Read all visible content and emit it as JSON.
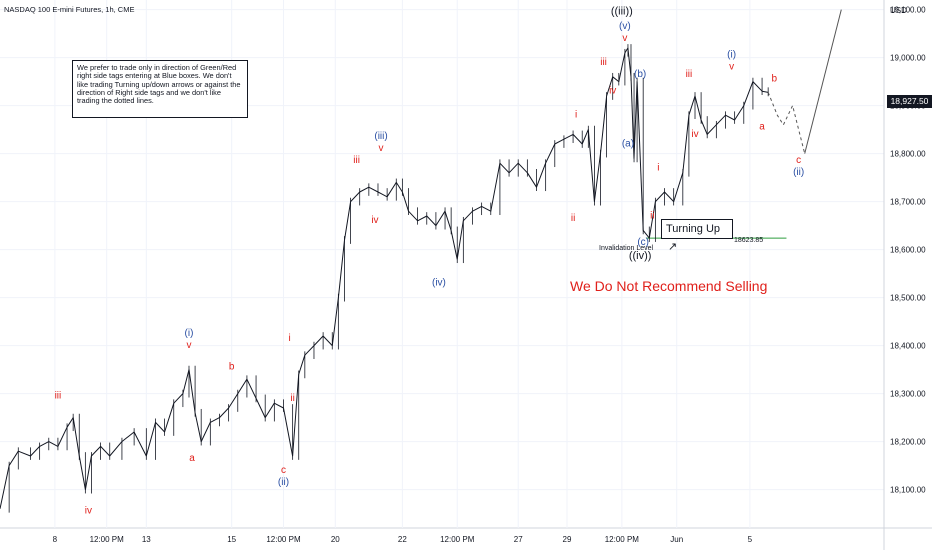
{
  "header": {
    "title": "NASDAQ 100 E-mini Futures, 1h, CME"
  },
  "currency": "USD",
  "last_price": "18,927.50",
  "note_text": "We prefer to trade only in direction of Green/Red right side tags entering at Blue boxes. We don't like trading Turning up/down arrows or against the direction of Right side tags and we don't like trading the dotted lines.",
  "turning_label": "Turning Up",
  "warning": "We Do Not Recommend Selling",
  "invalidation": {
    "label": "Invalidation Level",
    "value": "18623.85",
    "line_color": "#2e9e3f"
  },
  "colors": {
    "red": "#e0201b",
    "blue": "#2a4fa3",
    "dark": "#131722",
    "grid": "#f0f3fa"
  },
  "chart_data": {
    "type": "line",
    "title": "NASDAQ 100 E-mini Futures, 1h, CME",
    "ylim": [
      18020,
      19120
    ],
    "y_ticks": [
      "18,100.00",
      "18,200.00",
      "18,300.00",
      "18,400.00",
      "18,500.00",
      "18,600.00",
      "18,700.00",
      "18,800.00",
      "18,900.00",
      "19,000.00",
      "19,100.00"
    ],
    "y_tick_values": [
      18100,
      18200,
      18300,
      18400,
      18500,
      18600,
      18700,
      18800,
      18900,
      19000,
      19100
    ],
    "x_labels": [
      "8",
      "12:00 PM",
      "13",
      "15",
      "12:00 PM",
      "20",
      "22",
      "12:00 PM",
      "27",
      "29",
      "12:00 PM",
      "Jun",
      "5"
    ],
    "series": [
      {
        "points": [
          [
            0,
            18060
          ],
          [
            3,
            18150
          ],
          [
            6,
            18180
          ],
          [
            10,
            18170
          ],
          [
            13,
            18190
          ],
          [
            16,
            18200
          ],
          [
            19,
            18190
          ],
          [
            22,
            18230
          ],
          [
            24,
            18250
          ],
          [
            26,
            18170
          ],
          [
            28,
            18100
          ],
          [
            30,
            18170
          ],
          [
            33,
            18190
          ],
          [
            36,
            18170
          ],
          [
            40,
            18200
          ],
          [
            44,
            18220
          ],
          [
            48,
            18170
          ],
          [
            51,
            18240
          ],
          [
            54,
            18220
          ],
          [
            57,
            18280
          ],
          [
            60,
            18300
          ],
          [
            62,
            18350
          ],
          [
            64,
            18260
          ],
          [
            66,
            18200
          ],
          [
            69,
            18240
          ],
          [
            72,
            18250
          ],
          [
            75,
            18270
          ],
          [
            78,
            18300
          ],
          [
            81,
            18330
          ],
          [
            84,
            18290
          ],
          [
            87,
            18250
          ],
          [
            90,
            18280
          ],
          [
            93,
            18270
          ],
          [
            96,
            18170
          ],
          [
            98,
            18340
          ],
          [
            100,
            18380
          ],
          [
            103,
            18400
          ],
          [
            106,
            18420
          ],
          [
            109,
            18400
          ],
          [
            111,
            18500
          ],
          [
            113,
            18620
          ],
          [
            115,
            18700
          ],
          [
            118,
            18720
          ],
          [
            121,
            18730
          ],
          [
            124,
            18720
          ],
          [
            127,
            18710
          ],
          [
            130,
            18740
          ],
          [
            132,
            18720
          ],
          [
            134,
            18680
          ],
          [
            137,
            18660
          ],
          [
            140,
            18670
          ],
          [
            143,
            18650
          ],
          [
            146,
            18680
          ],
          [
            148,
            18640
          ],
          [
            150,
            18580
          ],
          [
            152,
            18660
          ],
          [
            155,
            18680
          ],
          [
            158,
            18690
          ],
          [
            161,
            18680
          ],
          [
            164,
            18780
          ],
          [
            167,
            18760
          ],
          [
            170,
            18780
          ],
          [
            173,
            18760
          ],
          [
            176,
            18730
          ],
          [
            179,
            18780
          ],
          [
            182,
            18820
          ],
          [
            185,
            18830
          ],
          [
            188,
            18840
          ],
          [
            191,
            18820
          ],
          [
            193,
            18850
          ],
          [
            195,
            18700
          ],
          [
            197,
            18800
          ],
          [
            199,
            18920
          ],
          [
            201,
            18960
          ],
          [
            203,
            18950
          ],
          [
            205,
            19010
          ],
          [
            206,
            19020
          ],
          [
            207,
            18960
          ],
          [
            208,
            18790
          ],
          [
            209,
            18950
          ],
          [
            211,
            18640
          ],
          [
            213,
            18624
          ],
          [
            215,
            18700
          ],
          [
            218,
            18720
          ],
          [
            221,
            18700
          ],
          [
            224,
            18760
          ],
          [
            226,
            18880
          ],
          [
            228,
            18920
          ],
          [
            230,
            18870
          ],
          [
            232,
            18840
          ],
          [
            235,
            18860
          ],
          [
            238,
            18880
          ],
          [
            241,
            18870
          ],
          [
            244,
            18900
          ],
          [
            247,
            18950
          ],
          [
            250,
            18930
          ],
          [
            252,
            18927.5
          ]
        ]
      },
      {
        "points": [
          [
            252,
            18927.5
          ],
          [
            255,
            18880
          ],
          [
            257,
            18860
          ],
          [
            260,
            18900
          ],
          [
            264,
            18800
          ]
        ],
        "style": "dotted"
      },
      {
        "points": [
          [
            264,
            18800
          ],
          [
            276,
            19100
          ]
        ],
        "style": "projection"
      }
    ]
  },
  "wave_labels": [
    {
      "text": "iii",
      "color": "red",
      "x": 19,
      "y": 18290
    },
    {
      "text": "iv",
      "color": "red",
      "x": 29,
      "y": 18050
    },
    {
      "text": "(i)",
      "color": "blue",
      "x": 62,
      "y": 18420
    },
    {
      "text": "v",
      "color": "red",
      "x": 62,
      "y": 18395
    },
    {
      "text": "a",
      "color": "red",
      "x": 63,
      "y": 18160
    },
    {
      "text": "b",
      "color": "red",
      "x": 76,
      "y": 18350
    },
    {
      "text": "i",
      "color": "red",
      "x": 95,
      "y": 18410
    },
    {
      "text": "ii",
      "color": "red",
      "x": 96,
      "y": 18285
    },
    {
      "text": "c",
      "color": "red",
      "x": 93,
      "y": 18135
    },
    {
      "text": "(ii)",
      "color": "blue",
      "x": 93,
      "y": 18110
    },
    {
      "text": "(iii)",
      "color": "blue",
      "x": 125,
      "y": 18830
    },
    {
      "text": "v",
      "color": "red",
      "x": 125,
      "y": 18805
    },
    {
      "text": "iii",
      "color": "red",
      "x": 117,
      "y": 18780
    },
    {
      "text": "iv",
      "color": "red",
      "x": 123,
      "y": 18655
    },
    {
      "text": "(iv)",
      "color": "blue",
      "x": 144,
      "y": 18525
    },
    {
      "text": "i",
      "color": "red",
      "x": 189,
      "y": 18875
    },
    {
      "text": "ii",
      "color": "red",
      "x": 188,
      "y": 18660
    },
    {
      "text": "((iii))",
      "color": "dark",
      "x": 204,
      "y": 19090
    },
    {
      "text": "(v)",
      "color": "blue",
      "x": 205,
      "y": 19060
    },
    {
      "text": "v",
      "color": "red",
      "x": 205,
      "y": 19035
    },
    {
      "text": "iii",
      "color": "red",
      "x": 198,
      "y": 18985
    },
    {
      "text": "iv",
      "color": "red",
      "x": 201,
      "y": 18925
    },
    {
      "text": "(b)",
      "color": "blue",
      "x": 210,
      "y": 18960
    },
    {
      "text": "(a)",
      "color": "blue",
      "x": 206,
      "y": 18815
    },
    {
      "text": "(c)",
      "color": "blue",
      "x": 211,
      "y": 18610
    },
    {
      "text": "((iv))",
      "color": "dark",
      "x": 210,
      "y": 18580
    },
    {
      "text": "i",
      "color": "red",
      "x": 216,
      "y": 18765
    },
    {
      "text": "ii",
      "color": "red",
      "x": 214,
      "y": 18665
    },
    {
      "text": "iii",
      "color": "red",
      "x": 226,
      "y": 18960
    },
    {
      "text": "iv",
      "color": "red",
      "x": 228,
      "y": 18835
    },
    {
      "text": "(i)",
      "color": "blue",
      "x": 240,
      "y": 19000
    },
    {
      "text": "v",
      "color": "red",
      "x": 240,
      "y": 18975
    },
    {
      "text": "a",
      "color": "red",
      "x": 250,
      "y": 18850
    },
    {
      "text": "b",
      "color": "red",
      "x": 254,
      "y": 18950
    },
    {
      "text": "c",
      "color": "red",
      "x": 262,
      "y": 18780
    },
    {
      "text": "(ii)",
      "color": "blue",
      "x": 262,
      "y": 18755
    }
  ]
}
